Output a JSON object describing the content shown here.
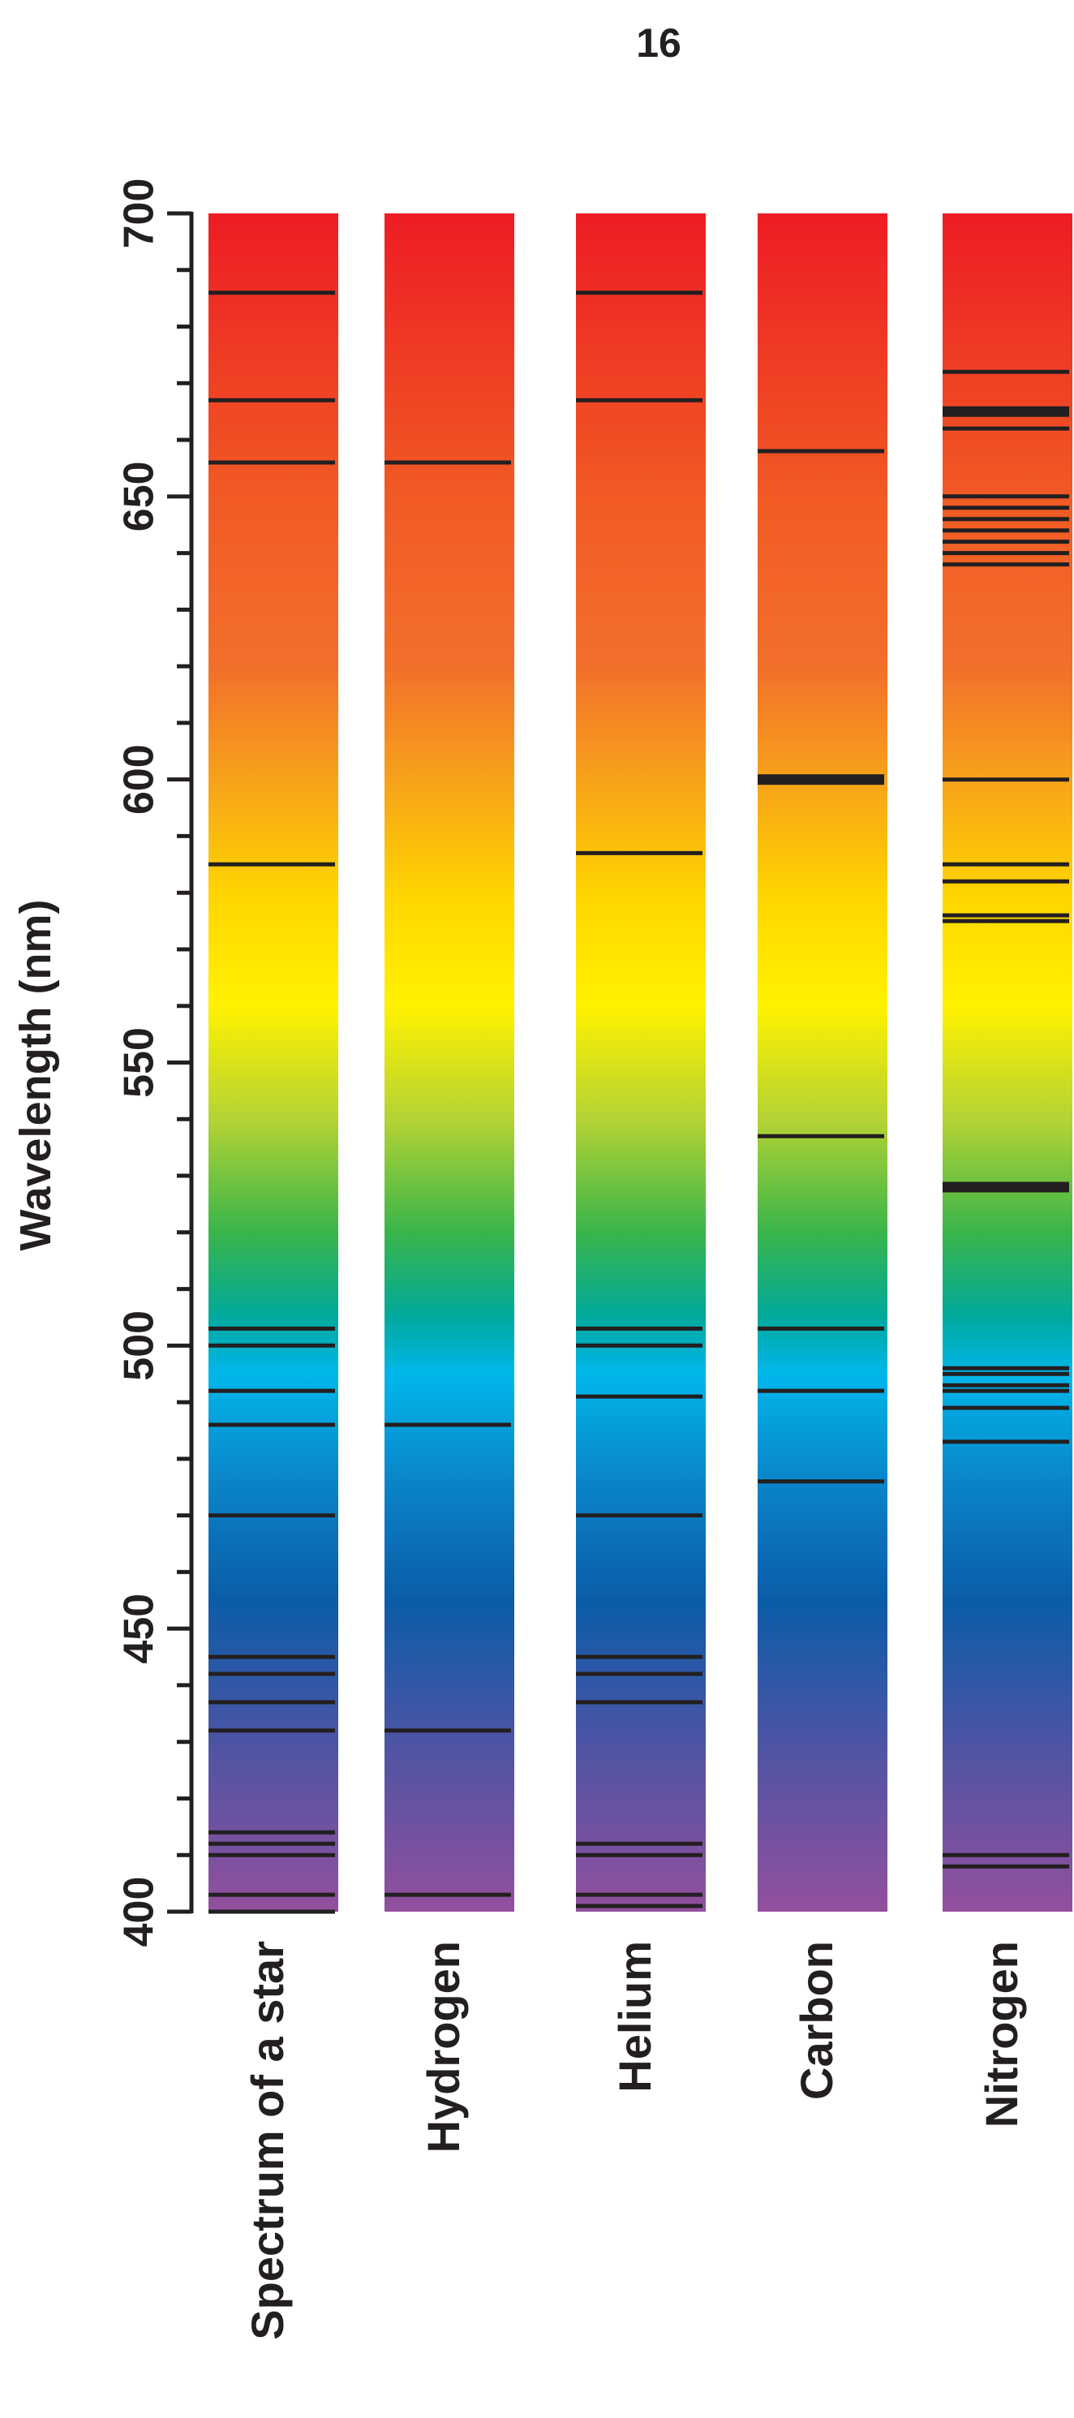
{
  "page_number": "16",
  "chart_data": {
    "type": "spectrum-strips",
    "ylabel": "Wavelength (nm)",
    "ylim": [
      400,
      700
    ],
    "yticks": [
      400,
      450,
      500,
      550,
      600,
      650,
      700
    ],
    "minor_tick_step": 10,
    "gradient_stops": [
      {
        "nm": 700,
        "color": "#ed1c24"
      },
      {
        "nm": 650,
        "color": "#f15a24"
      },
      {
        "nm": 620,
        "color": "#f26f2a"
      },
      {
        "nm": 600,
        "color": "#f7a21b"
      },
      {
        "nm": 580,
        "color": "#ffd400"
      },
      {
        "nm": 560,
        "color": "#fff200"
      },
      {
        "nm": 540,
        "color": "#b5d334"
      },
      {
        "nm": 520,
        "color": "#39b54a"
      },
      {
        "nm": 505,
        "color": "#00a99d"
      },
      {
        "nm": 495,
        "color": "#00b7eb"
      },
      {
        "nm": 475,
        "color": "#0a82c8"
      },
      {
        "nm": 455,
        "color": "#0b5ca8"
      },
      {
        "nm": 430,
        "color": "#4c54a4"
      },
      {
        "nm": 400,
        "color": "#93509e"
      }
    ],
    "series": [
      {
        "name": "Spectrum of a star",
        "lines": [
          {
            "nm": 686
          },
          {
            "nm": 667
          },
          {
            "nm": 656
          },
          {
            "nm": 585
          },
          {
            "nm": 503
          },
          {
            "nm": 500
          },
          {
            "nm": 492
          },
          {
            "nm": 486
          },
          {
            "nm": 470
          },
          {
            "nm": 445
          },
          {
            "nm": 442
          },
          {
            "nm": 437
          },
          {
            "nm": 432
          },
          {
            "nm": 414
          },
          {
            "nm": 412
          },
          {
            "nm": 410
          },
          {
            "nm": 403
          },
          {
            "nm": 400
          }
        ]
      },
      {
        "name": "Hydrogen",
        "lines": [
          {
            "nm": 656
          },
          {
            "nm": 486
          },
          {
            "nm": 432
          },
          {
            "nm": 403
          }
        ]
      },
      {
        "name": "Helium",
        "lines": [
          {
            "nm": 686
          },
          {
            "nm": 667
          },
          {
            "nm": 587
          },
          {
            "nm": 503
          },
          {
            "nm": 500
          },
          {
            "nm": 491
          },
          {
            "nm": 470
          },
          {
            "nm": 445
          },
          {
            "nm": 442
          },
          {
            "nm": 437
          },
          {
            "nm": 412
          },
          {
            "nm": 410
          },
          {
            "nm": 403
          },
          {
            "nm": 401
          }
        ]
      },
      {
        "name": "Carbon",
        "lines": [
          {
            "nm": 658
          },
          {
            "nm": 600,
            "thick": true
          },
          {
            "nm": 537
          },
          {
            "nm": 503
          },
          {
            "nm": 492
          },
          {
            "nm": 476
          }
        ]
      },
      {
        "name": "Nitrogen",
        "lines": [
          {
            "nm": 672
          },
          {
            "nm": 665,
            "thick": true
          },
          {
            "nm": 662
          },
          {
            "nm": 650
          },
          {
            "nm": 648
          },
          {
            "nm": 646
          },
          {
            "nm": 644
          },
          {
            "nm": 642
          },
          {
            "nm": 640
          },
          {
            "nm": 638
          },
          {
            "nm": 600
          },
          {
            "nm": 585
          },
          {
            "nm": 582
          },
          {
            "nm": 576
          },
          {
            "nm": 575
          },
          {
            "nm": 528,
            "thick": true
          },
          {
            "nm": 496
          },
          {
            "nm": 495
          },
          {
            "nm": 493
          },
          {
            "nm": 492
          },
          {
            "nm": 489
          },
          {
            "nm": 483
          },
          {
            "nm": 410
          },
          {
            "nm": 408
          }
        ]
      }
    ]
  }
}
